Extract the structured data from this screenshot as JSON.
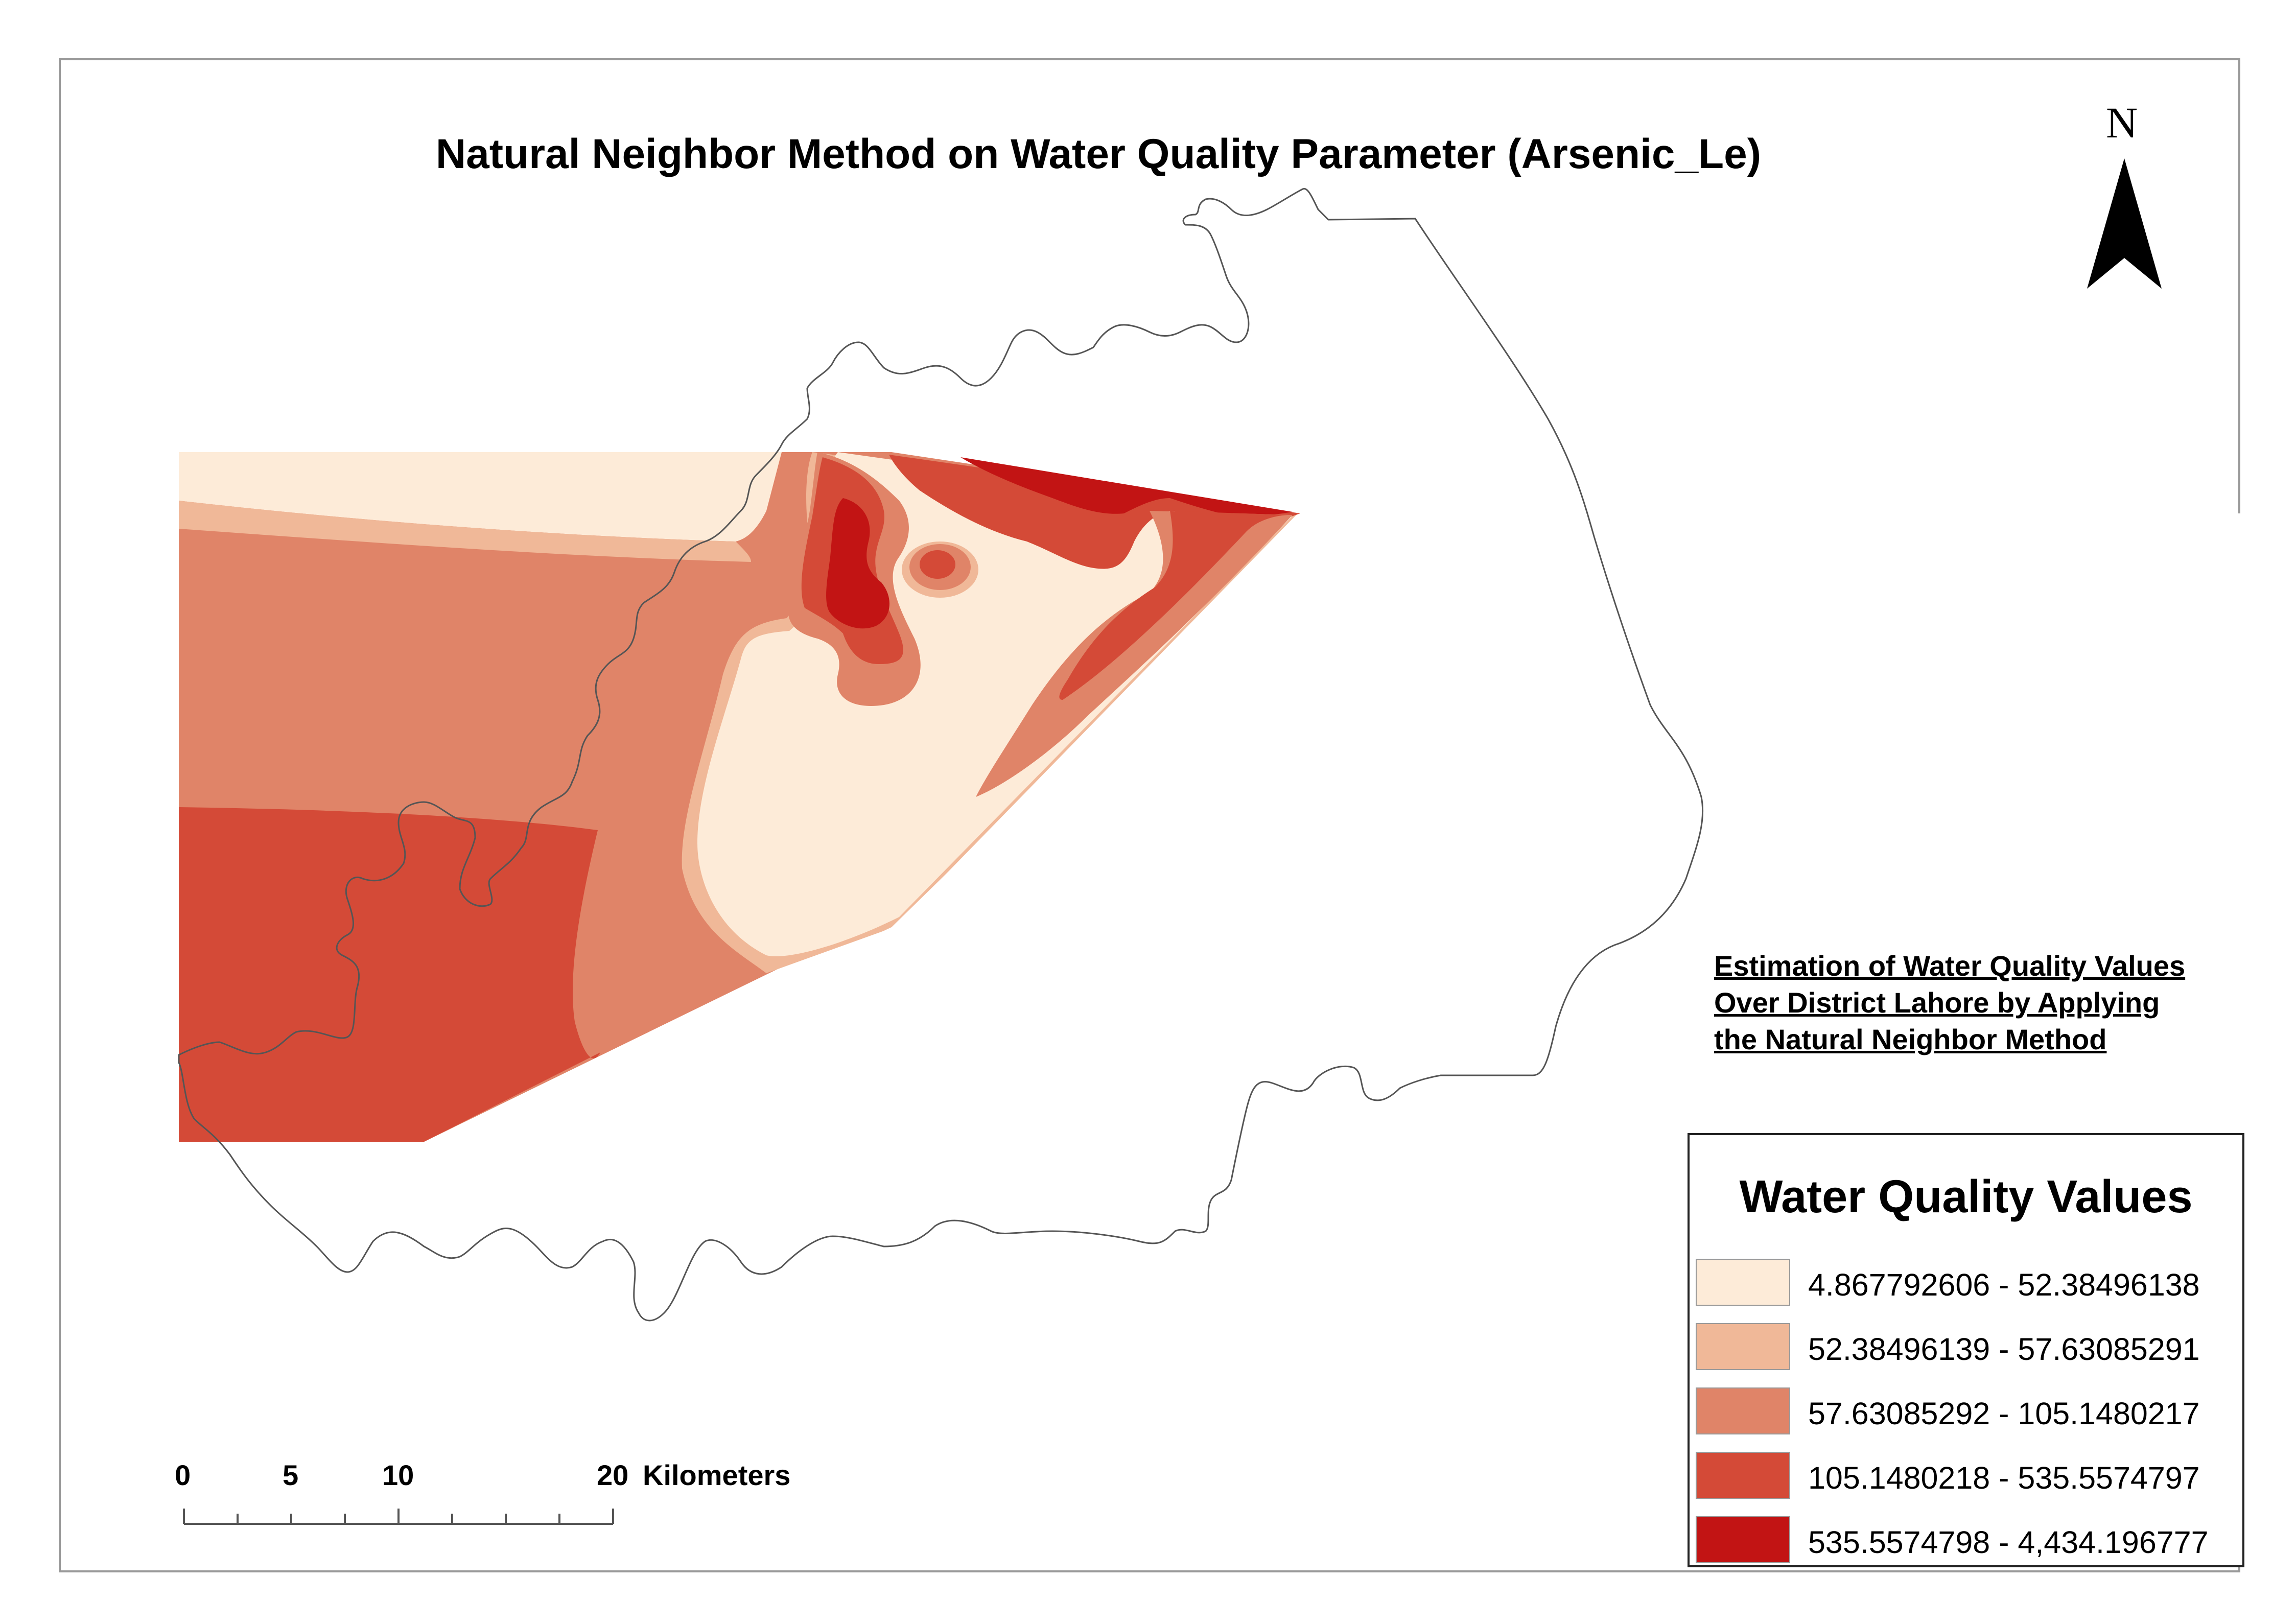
{
  "title": "Natural Neighbor Method on Water Quality Parameter (Arsenic_Le)",
  "north_arrow": {
    "label": "N",
    "icon": "north-arrow-icon"
  },
  "note": {
    "line1": "Estimation of Water Quality Values",
    "line2": "Over District Lahore by Applying ",
    "line3": "the Natural Neighbor Method"
  },
  "legend": {
    "title": "Water Quality Values",
    "classes": [
      {
        "label": "4.867792606 - 52.38496138",
        "color": "#fdebd8"
      },
      {
        "label": "52.38496139 - 57.63085291",
        "color": "#f0b898"
      },
      {
        "label": "57.63085292 - 105.1480217",
        "color": "#e08468"
      },
      {
        "label": "105.1480218 - 535.5574797",
        "color": "#d44a37"
      },
      {
        "label": "535.5574798 - 4,434.196777",
        "color": "#c21414"
      }
    ]
  },
  "scale_bar": {
    "ticks": [
      "0",
      "5",
      "10",
      "20"
    ],
    "units": "Kilometers"
  }
}
